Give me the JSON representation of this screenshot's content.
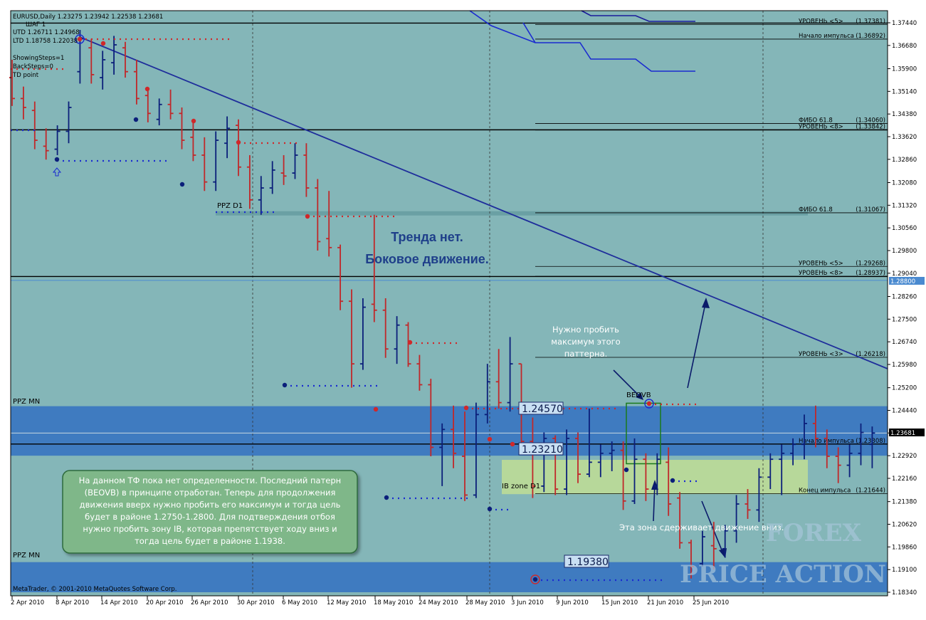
{
  "header": {
    "symbol": "EURUSD,Daily  1.23275 1.23942 1.22538 1.23681",
    "step": "ШАГ 1",
    "utd": "UTD  1.26711  1.24968",
    "ltd": "LTD  1.18758  1.22038",
    "showing_steps": "ShowingSteps=1",
    "back_steps": "BackSteps=0",
    "td_point": "TD point"
  },
  "footer": {
    "copyright": "MetaTrader, © 2001-2010 MetaQuotes Software Corp."
  },
  "watermark": {
    "line1": "FOREX",
    "line2": "PRICE ACTION"
  },
  "colors": {
    "background": "#84b6b8",
    "bull_bar": "#0b1f7a",
    "bear_bar": "#c0282a",
    "trendline": "#1e2d9b",
    "ppz_zone": "#3f7bc0",
    "ib_zone": "#b7d89a",
    "note_box": "#7fb789",
    "price_tag": "#3f7bc0"
  },
  "texts": {
    "ppz_d1": "PPZ D1",
    "ppz_mn_top": "PPZ MN",
    "ppz_mn_bottom": "PPZ MN",
    "trend_line1": "Тренда нет.",
    "trend_line2": "Боковое движение.",
    "need_break_1": "Нужно пробить",
    "need_break_2": "максимум этого",
    "need_break_3": "паттерна.",
    "beovb": "BEOVB",
    "ib_zone": "IB zone D1",
    "zone_holds": "Эта зона сдерживает движение вниз.",
    "label_12457": "1.24570",
    "label_12321": "1.23210",
    "label_11938": "1.19380",
    "note_lines": [
      "На данном ТФ пока нет определенности. Последний патерн",
      "(BEOVB) в принципе отработан. Теперь для продолжения",
      "движения вверх нужно пробить его максимум и тогда цель",
      "будет в районе 1.2750-1.2800. Для подтверждения отбоя",
      "нужно пробить зону IB, которая препятствует ходу вниз и",
      "тогда цель будет в районе 1.1938."
    ]
  },
  "chart_data": {
    "type": "ohlc",
    "title": "EURUSD,Daily",
    "ylim": [
      1.1834,
      1.3774
    ],
    "y_ticks": [
      "1.37440",
      "1.36680",
      "1.35900",
      "1.35140",
      "1.34380",
      "1.33620",
      "1.32860",
      "1.32080",
      "1.31320",
      "1.30560",
      "1.29800",
      "1.29040",
      "1.28260",
      "1.27500",
      "1.26740",
      "1.25980",
      "1.25200",
      "1.24440",
      "1.23681",
      "1.22920",
      "1.22160",
      "1.21380",
      "1.20620",
      "1.19860",
      "1.19100",
      "1.18340"
    ],
    "x_ticks": [
      "2 Apr 2010",
      "8 Apr 2010",
      "14 Apr 2010",
      "20 Apr 2010",
      "26 Apr 2010",
      "30 Apr 2010",
      "6 May 2010",
      "12 May 2010",
      "18 May 2010",
      "24 May 2010",
      "28 May 2010",
      "3 Jun 2010",
      "9 Jun 2010",
      "15 Jun 2010",
      "21 Jun 2010",
      "25 Jun 2010"
    ],
    "current_price": "1.23681",
    "line_price_tag": "1.28800",
    "levels": [
      {
        "label": "УРОВЕНЬ <5>",
        "value": "(1.37381)",
        "price": 1.37381
      },
      {
        "label": "Начало импульса",
        "value": "(1.36892)",
        "price": 1.36892
      },
      {
        "label": "ФИБО 61.8",
        "value": "(1.34060)",
        "price": 1.3406
      },
      {
        "label": "УРОВЕНЬ <8>",
        "value": "(1.33842)",
        "price": 1.33842
      },
      {
        "label": "ФИБО 61.8",
        "value": "(1.31067)",
        "price": 1.31067
      },
      {
        "label": "УРОВЕНЬ <5>",
        "value": "(1.29268)",
        "price": 1.29268
      },
      {
        "label": "УРОВЕНЬ <8>",
        "value": "(1.28937)",
        "price": 1.28937
      },
      {
        "label": "УРОВЕНЬ <3>",
        "value": "(1.26218)",
        "price": 1.26218
      },
      {
        "label": "Начало импульса",
        "value": "(1.23308)",
        "price": 1.23308
      },
      {
        "label": "Конец импульса",
        "value": "(1.21644)",
        "price": 1.21644
      }
    ],
    "bars": [
      {
        "o": 1.356,
        "h": 1.362,
        "l": 1.3465,
        "c": 1.349
      },
      {
        "o": 1.349,
        "h": 1.353,
        "l": 1.342,
        "c": 1.346
      },
      {
        "o": 1.345,
        "h": 1.348,
        "l": 1.332,
        "c": 1.335
      },
      {
        "o": 1.333,
        "h": 1.339,
        "l": 1.3285,
        "c": 1.3315
      },
      {
        "o": 1.332,
        "h": 1.34,
        "l": 1.33,
        "c": 1.338
      },
      {
        "o": 1.338,
        "h": 1.348,
        "l": 1.334,
        "c": 1.346
      },
      {
        "o": 1.358,
        "h": 1.372,
        "l": 1.354,
        "c": 1.369
      },
      {
        "o": 1.366,
        "h": 1.369,
        "l": 1.354,
        "c": 1.357
      },
      {
        "o": 1.356,
        "h": 1.365,
        "l": 1.352,
        "c": 1.362
      },
      {
        "o": 1.361,
        "h": 1.37,
        "l": 1.357,
        "c": 1.367
      },
      {
        "o": 1.366,
        "h": 1.368,
        "l": 1.356,
        "c": 1.358
      },
      {
        "o": 1.358,
        "h": 1.362,
        "l": 1.347,
        "c": 1.349
      },
      {
        "o": 1.35,
        "h": 1.352,
        "l": 1.341,
        "c": 1.344
      },
      {
        "o": 1.342,
        "h": 1.349,
        "l": 1.34,
        "c": 1.347
      },
      {
        "o": 1.347,
        "h": 1.352,
        "l": 1.342,
        "c": 1.344
      },
      {
        "o": 1.344,
        "h": 1.346,
        "l": 1.332,
        "c": 1.335
      },
      {
        "o": 1.336,
        "h": 1.342,
        "l": 1.328,
        "c": 1.33
      },
      {
        "o": 1.33,
        "h": 1.336,
        "l": 1.318,
        "c": 1.321
      },
      {
        "o": 1.321,
        "h": 1.338,
        "l": 1.318,
        "c": 1.335
      },
      {
        "o": 1.334,
        "h": 1.343,
        "l": 1.329,
        "c": 1.339
      },
      {
        "o": 1.34,
        "h": 1.342,
        "l": 1.323,
        "c": 1.326
      },
      {
        "o": 1.326,
        "h": 1.33,
        "l": 1.312,
        "c": 1.315
      },
      {
        "o": 1.315,
        "h": 1.323,
        "l": 1.31,
        "c": 1.319
      },
      {
        "o": 1.319,
        "h": 1.328,
        "l": 1.317,
        "c": 1.325
      },
      {
        "o": 1.324,
        "h": 1.33,
        "l": 1.32,
        "c": 1.323
      },
      {
        "o": 1.324,
        "h": 1.334,
        "l": 1.322,
        "c": 1.33
      },
      {
        "o": 1.33,
        "h": 1.334,
        "l": 1.316,
        "c": 1.319
      },
      {
        "o": 1.319,
        "h": 1.322,
        "l": 1.298,
        "c": 1.301
      },
      {
        "o": 1.302,
        "h": 1.318,
        "l": 1.296,
        "c": 1.299
      },
      {
        "o": 1.299,
        "h": 1.3,
        "l": 1.278,
        "c": 1.281
      },
      {
        "o": 1.281,
        "h": 1.285,
        "l": 1.252,
        "c": 1.26
      },
      {
        "o": 1.26,
        "h": 1.282,
        "l": 1.258,
        "c": 1.279
      },
      {
        "o": 1.28,
        "h": 1.31,
        "l": 1.274,
        "c": 1.278
      },
      {
        "o": 1.278,
        "h": 1.282,
        "l": 1.262,
        "c": 1.265
      },
      {
        "o": 1.265,
        "h": 1.276,
        "l": 1.26,
        "c": 1.273
      },
      {
        "o": 1.273,
        "h": 1.274,
        "l": 1.259,
        "c": 1.26
      },
      {
        "o": 1.26,
        "h": 1.263,
        "l": 1.251,
        "c": 1.253
      },
      {
        "o": 1.253,
        "h": 1.255,
        "l": 1.229,
        "c": 1.232
      },
      {
        "o": 1.232,
        "h": 1.24,
        "l": 1.219,
        "c": 1.238
      },
      {
        "o": 1.238,
        "h": 1.246,
        "l": 1.225,
        "c": 1.23
      },
      {
        "o": 1.229,
        "h": 1.244,
        "l": 1.214,
        "c": 1.216
      },
      {
        "o": 1.216,
        "h": 1.247,
        "l": 1.215,
        "c": 1.243
      },
      {
        "o": 1.243,
        "h": 1.26,
        "l": 1.24,
        "c": 1.254
      },
      {
        "o": 1.254,
        "h": 1.265,
        "l": 1.245,
        "c": 1.247
      },
      {
        "o": 1.247,
        "h": 1.269,
        "l": 1.244,
        "c": 1.26
      },
      {
        "o": 1.26,
        "h": 1.26,
        "l": 1.232,
        "c": 1.234
      },
      {
        "o": 1.234,
        "h": 1.242,
        "l": 1.215,
        "c": 1.219
      },
      {
        "o": 1.219,
        "h": 1.237,
        "l": 1.217,
        "c": 1.235
      },
      {
        "o": 1.235,
        "h": 1.236,
        "l": 1.216,
        "c": 1.218
      },
      {
        "o": 1.218,
        "h": 1.238,
        "l": 1.216,
        "c": 1.235
      },
      {
        "o": 1.235,
        "h": 1.237,
        "l": 1.22,
        "c": 1.223
      },
      {
        "o": 1.223,
        "h": 1.245,
        "l": 1.222,
        "c": 1.227
      },
      {
        "o": 1.227,
        "h": 1.233,
        "l": 1.222,
        "c": 1.23
      },
      {
        "o": 1.23,
        "h": 1.234,
        "l": 1.224,
        "c": 1.231
      },
      {
        "o": 1.231,
        "h": 1.234,
        "l": 1.211,
        "c": 1.214
      },
      {
        "o": 1.214,
        "h": 1.235,
        "l": 1.213,
        "c": 1.228
      },
      {
        "o": 1.228,
        "h": 1.23,
        "l": 1.214,
        "c": 1.218
      },
      {
        "o": 1.219,
        "h": 1.23,
        "l": 1.216,
        "c": 1.228
      },
      {
        "o": 1.227,
        "h": 1.232,
        "l": 1.209,
        "c": 1.213
      },
      {
        "o": 1.215,
        "h": 1.217,
        "l": 1.198,
        "c": 1.2
      },
      {
        "o": 1.2,
        "h": 1.201,
        "l": 1.188,
        "c": 1.192
      },
      {
        "o": 1.193,
        "h": 1.204,
        "l": 1.192,
        "c": 1.202
      },
      {
        "o": 1.199,
        "h": 1.207,
        "l": 1.191,
        "c": 1.198
      },
      {
        "o": 1.198,
        "h": 1.206,
        "l": 1.195,
        "c": 1.204
      },
      {
        "o": 1.204,
        "h": 1.216,
        "l": 1.2,
        "c": 1.213
      },
      {
        "o": 1.213,
        "h": 1.218,
        "l": 1.208,
        "c": 1.211
      },
      {
        "o": 1.211,
        "h": 1.225,
        "l": 1.207,
        "c": 1.222
      },
      {
        "o": 1.222,
        "h": 1.23,
        "l": 1.218,
        "c": 1.228
      },
      {
        "o": 1.228,
        "h": 1.233,
        "l": 1.216,
        "c": 1.23
      },
      {
        "o": 1.23,
        "h": 1.235,
        "l": 1.226,
        "c": 1.233
      },
      {
        "o": 1.233,
        "h": 1.243,
        "l": 1.228,
        "c": 1.24
      },
      {
        "o": 1.24,
        "h": 1.246,
        "l": 1.232,
        "c": 1.235
      },
      {
        "o": 1.235,
        "h": 1.238,
        "l": 1.225,
        "c": 1.229
      },
      {
        "o": 1.229,
        "h": 1.232,
        "l": 1.22,
        "c": 1.226
      },
      {
        "o": 1.226,
        "h": 1.233,
        "l": 1.222,
        "c": 1.23
      },
      {
        "o": 1.23,
        "h": 1.24,
        "l": 1.226,
        "c": 1.237
      },
      {
        "o": 1.233,
        "h": 1.239,
        "l": 1.225,
        "c": 1.2368
      }
    ]
  }
}
